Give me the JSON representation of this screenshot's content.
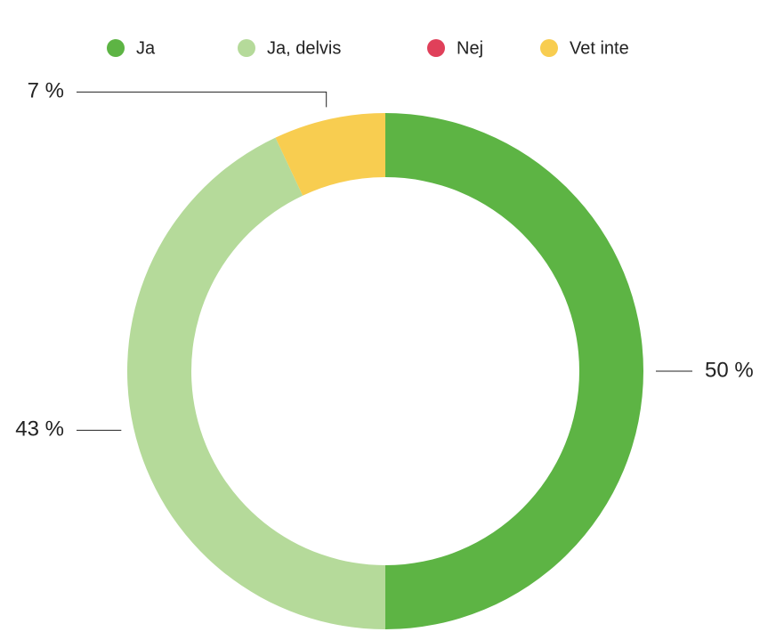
{
  "chart_data": {
    "type": "donut",
    "categories": [
      "Ja",
      "Ja, delvis",
      "Nej",
      "Vet inte"
    ],
    "values": [
      50,
      43,
      0,
      7
    ],
    "value_labels": [
      "50 %",
      "43 %",
      null,
      "7 %"
    ],
    "colors": [
      "#5db444",
      "#b5da9a",
      "#e0405a",
      "#f8cd50"
    ]
  }
}
